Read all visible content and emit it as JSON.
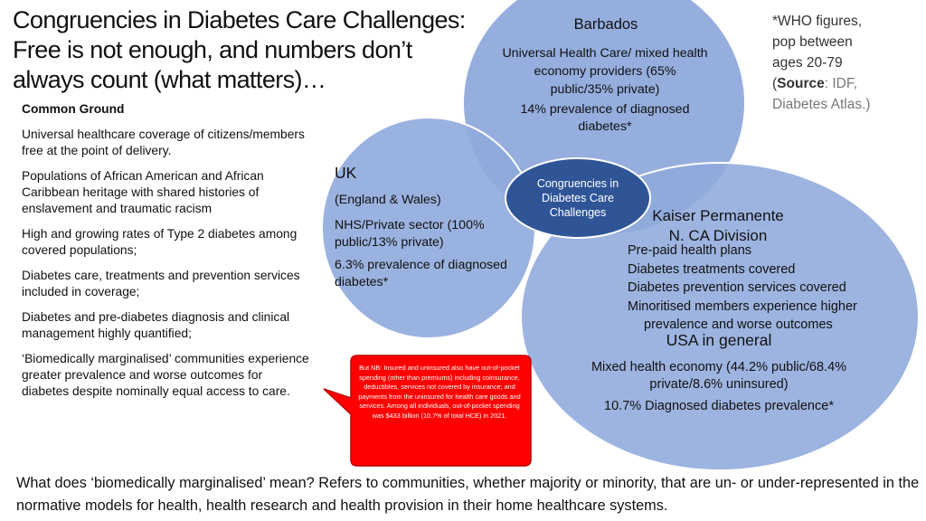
{
  "title_line1": "Congruencies in Diabetes Care Challenges:",
  "title_line2": "Free is not enough, and numbers don’t",
  "title_line3": "always count (what matters)…",
  "common_ground": {
    "heading": "Common Ground",
    "points": [
      "Universal healthcare coverage of citizens/members free at the point of delivery.",
      "Populations of African American and African Caribbean heritage with shared histories of enslavement and traumatic racism",
      "High and growing rates of Type 2 diabetes among covered populations;",
      "Diabetes care, treatments and prevention services included in coverage;",
      "Diabetes and pre-diabetes diagnosis and clinical management highly quantified;",
      "‘Biomedically marginalised’ communities experience greater prevalence and worse outcomes for diabetes despite nominally equal access to care."
    ]
  },
  "who_note": {
    "line1": "*WHO figures,",
    "line2": "pop between",
    "line3": "ages 20-79",
    "source_open": "(",
    "source_label": "Source",
    "source_rest": ": IDF,",
    "line5": "Diabetes Atlas.)"
  },
  "barbados": {
    "title": "Barbados",
    "system": "Universal Health Care/ mixed health economy providers (65% public/35% private)",
    "prevalence": "14% prevalence of diagnosed diabetes*"
  },
  "uk": {
    "title": "UK",
    "region": "(England & Wales)",
    "system": "NHS/Private sector (100% public/13% private)",
    "prevalence": "6.3% prevalence of diagnosed diabetes*"
  },
  "center_label": "Congruencies in Diabetes Care Challenges",
  "kaiser": {
    "title_line1": "Kaiser Permanente",
    "title_line2": "N. CA Division",
    "points": [
      "Pre-paid health plans",
      "Diabetes treatments covered",
      "Diabetes prevention services covered",
      "Minoritised members experience higher"
    ],
    "point_cont": "prevalence and worse outcomes"
  },
  "usa": {
    "title": "USA in general",
    "system": "Mixed health economy (44.2% public/68.4% private/8.6% uninsured)",
    "prevalence": "10.7% Diagnosed diabetes prevalence*"
  },
  "callout": "But NB: Insured and uninsured also have out-of-pocket spending (other than premiums) including coinsurance, deductibles, services not covered by insurance; and payments from the uninsured for health care goods and services. Among all individuals, out-of-pocket spending was $433 billion (10.7% of total HCE) in 2021.",
  "bottom_text": "What does ‘biomedically marginalised’ mean? Refers to communities, whether majority or minority, that are un- or under-represented in the normative models for health, health research and health provision in their home healthcare systems.",
  "colors": {
    "circle_fill": "#8faadc",
    "circle_stroke": "#ffffff",
    "center_fill": "#2f5597",
    "callout_fill": "#ff0000"
  }
}
